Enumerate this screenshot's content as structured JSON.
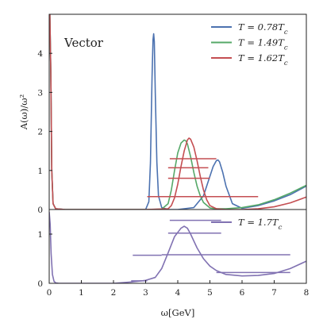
{
  "chart_data": [
    {
      "panel": "top",
      "type": "line",
      "title": "",
      "annotation": "Vector",
      "ylabel": "A(ω)/ω²",
      "xlim": [
        0,
        8
      ],
      "ylim": [
        0,
        5
      ],
      "yticks": [
        "0",
        "1",
        "2",
        "3",
        "4"
      ],
      "legend_position": "top-right",
      "series": [
        {
          "name": "T = 0.78T_c",
          "legend": "T = 0.78Tc",
          "color": "#4C72B0",
          "x": [
            0,
            0.02,
            0.05,
            0.08,
            0.12,
            0.2,
            0.5,
            1,
            2,
            3.0,
            3.1,
            3.15,
            3.2,
            3.23,
            3.25,
            3.27,
            3.3,
            3.35,
            3.4,
            3.5,
            3.7,
            4.0,
            4.5,
            4.8,
            5.0,
            5.1,
            5.2,
            5.25,
            5.3,
            5.4,
            5.5,
            5.7,
            6.0,
            6.5,
            7.0,
            7.5,
            8.0
          ],
          "y": [
            5,
            5,
            3.5,
            1.0,
            0.15,
            0.02,
            0.0,
            0.0,
            0.0,
            0.0,
            0.2,
            1.2,
            3.4,
            4.35,
            4.5,
            4.3,
            3.0,
            1.2,
            0.35,
            0.05,
            0.0,
            0.0,
            0.05,
            0.35,
            0.85,
            1.1,
            1.25,
            1.27,
            1.22,
            0.95,
            0.6,
            0.15,
            0.03,
            0.1,
            0.22,
            0.38,
            0.6
          ]
        },
        {
          "name": "T = 1.49T_c",
          "legend": "T = 1.49Tc",
          "color": "#55A868",
          "x": [
            0,
            0.02,
            0.05,
            0.08,
            0.12,
            0.2,
            0.5,
            1,
            2,
            3,
            3.5,
            3.7,
            3.8,
            3.9,
            4.0,
            4.1,
            4.2,
            4.25,
            4.3,
            4.4,
            4.5,
            4.6,
            4.7,
            4.8,
            5.0,
            5.2,
            5.5,
            6.0,
            6.5,
            7.0,
            7.5,
            8.0
          ],
          "y": [
            5,
            5,
            3.5,
            1.0,
            0.15,
            0.02,
            0.0,
            0.0,
            0.0,
            0.0,
            0.01,
            0.15,
            0.5,
            1.0,
            1.45,
            1.7,
            1.78,
            1.76,
            1.68,
            1.35,
            0.95,
            0.6,
            0.35,
            0.18,
            0.04,
            0.02,
            0.02,
            0.05,
            0.12,
            0.25,
            0.42,
            0.62
          ]
        },
        {
          "name": "T = 1.62T_c",
          "legend": "T = 1.62Tc",
          "color": "#C44E52",
          "x": [
            0,
            0.02,
            0.05,
            0.08,
            0.12,
            0.2,
            0.5,
            1,
            2,
            3,
            3.7,
            3.8,
            3.9,
            4.0,
            4.1,
            4.2,
            4.3,
            4.35,
            4.4,
            4.5,
            4.6,
            4.7,
            4.8,
            4.9,
            5.0,
            5.2,
            5.5,
            6.0,
            6.5,
            7.0,
            7.5,
            8.0
          ],
          "y": [
            5,
            5,
            3.5,
            1.0,
            0.15,
            0.02,
            0.0,
            0.0,
            0.0,
            0.0,
            0.02,
            0.1,
            0.3,
            0.65,
            1.1,
            1.5,
            1.78,
            1.83,
            1.8,
            1.6,
            1.25,
            0.85,
            0.5,
            0.25,
            0.1,
            0.02,
            0.0,
            0.0,
            0.02,
            0.07,
            0.17,
            0.32
          ]
        }
      ],
      "error_bars": [
        {
          "series": "T = 1.62T_c",
          "x_start": 3.05,
          "x_end": 6.5,
          "y": 0.33
        },
        {
          "series": "T = 1.62T_c",
          "x_start": 3.7,
          "x_end": 5.0,
          "y": 0.8
        },
        {
          "series": "T = 1.62T_c",
          "x_start": 3.7,
          "x_end": 4.95,
          "y": 1.07
        },
        {
          "series": "T = 1.62T_c",
          "x_start": 3.75,
          "x_end": 5.2,
          "y": 1.3
        }
      ]
    },
    {
      "panel": "bottom",
      "type": "line",
      "title": "",
      "xlabel": "ω[GeV]",
      "xlim": [
        0,
        8
      ],
      "ylim": [
        0,
        1.5
      ],
      "xticks": [
        "0",
        "1",
        "2",
        "3",
        "4",
        "5",
        "6",
        "7",
        "8"
      ],
      "yticks": [
        "0",
        "1"
      ],
      "legend_position": "top-right",
      "series": [
        {
          "name": "T = 1.7T_c",
          "legend": "T = 1.7Tc",
          "color": "#8172B2",
          "x": [
            0,
            0.03,
            0.06,
            0.1,
            0.15,
            0.2,
            0.3,
            1,
            2,
            2.6,
            3.0,
            3.3,
            3.5,
            3.7,
            3.9,
            4.1,
            4.2,
            4.3,
            4.4,
            4.6,
            4.8,
            5.0,
            5.2,
            5.5,
            6.0,
            6.5,
            7.0,
            7.5,
            8.0
          ],
          "y": [
            1.45,
            1.2,
            0.6,
            0.18,
            0.04,
            0.01,
            0.0,
            0.0,
            0.0,
            0.03,
            0.06,
            0.12,
            0.3,
            0.62,
            0.95,
            1.12,
            1.16,
            1.12,
            1.0,
            0.72,
            0.5,
            0.35,
            0.26,
            0.18,
            0.15,
            0.16,
            0.2,
            0.3,
            0.45
          ]
        }
      ],
      "error_bars": [
        {
          "series": "T = 1.7T_c",
          "x_start": 2.55,
          "x_end": 3.05,
          "y": 0.05
        },
        {
          "series": "T = 1.7T_c",
          "x_start": 2.6,
          "x_end": 3.5,
          "y": 0.57
        },
        {
          "series": "T = 1.7T_c",
          "x_start": 5.2,
          "x_end": 7.5,
          "y": 0.22
        },
        {
          "series": "T = 1.7T_c",
          "x_start": 3.5,
          "x_end": 7.5,
          "y": 0.58
        },
        {
          "series": "T = 1.7T_c",
          "x_start": 3.7,
          "x_end": 5.35,
          "y": 1.02
        },
        {
          "series": "T = 1.7T_c",
          "x_start": 3.75,
          "x_end": 5.35,
          "y": 1.28
        }
      ]
    }
  ]
}
